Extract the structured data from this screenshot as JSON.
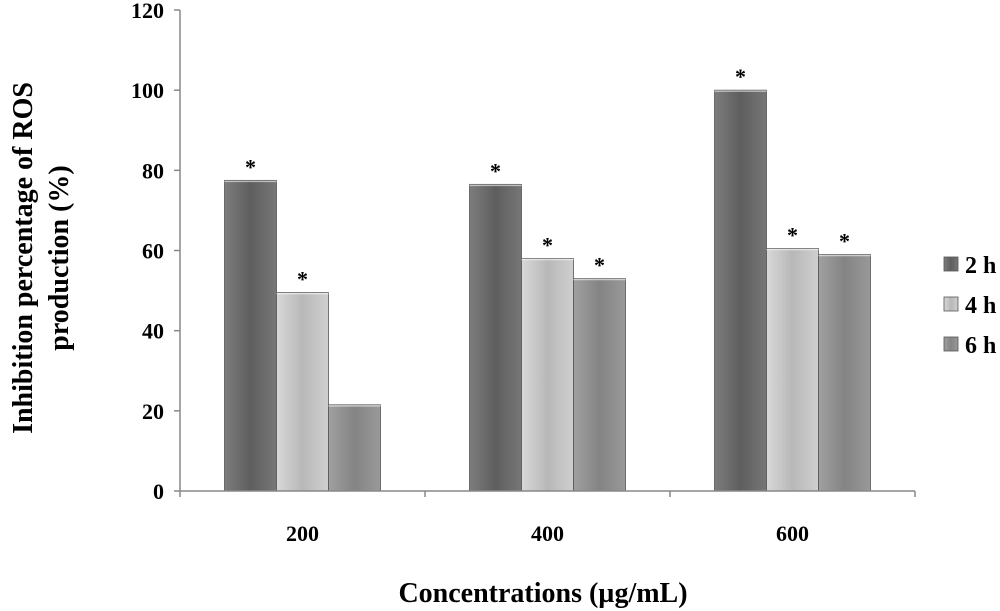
{
  "chart_data": {
    "type": "bar",
    "title": "",
    "xlabel": "Concentrations (µg/mL)",
    "ylabel": [
      "Inhibition percentage of ROS",
      "production (%)"
    ],
    "categories": [
      "200",
      "400",
      "600"
    ],
    "ylim": [
      0,
      120
    ],
    "yticks": [
      0,
      20,
      40,
      60,
      80,
      100,
      120
    ],
    "grid": false,
    "legend_position": "right",
    "series": [
      {
        "name": "2 h",
        "values": [
          77.5,
          76.5,
          100
        ],
        "significant": [
          true,
          true,
          true
        ],
        "color": "#6e6e6e"
      },
      {
        "name": "4 h",
        "values": [
          49.5,
          58,
          60.5
        ],
        "significant": [
          true,
          true,
          true
        ],
        "color": "#c4c4c4"
      },
      {
        "name": "6 h",
        "values": [
          21.5,
          53,
          59
        ],
        "significant": [
          false,
          true,
          true
        ],
        "color": "#8f8f8f"
      }
    ],
    "significance_marker": "*"
  }
}
